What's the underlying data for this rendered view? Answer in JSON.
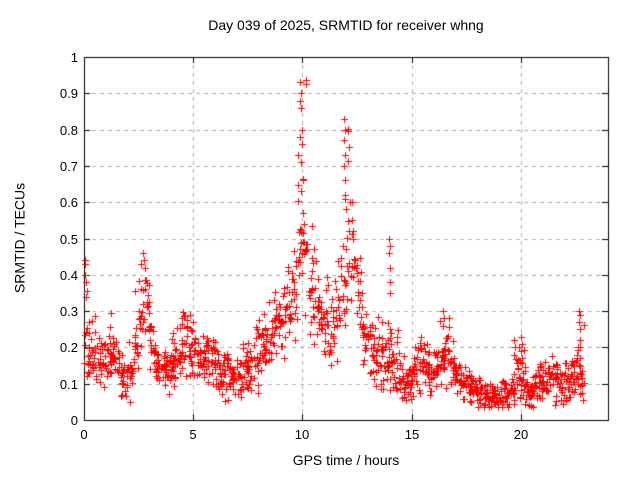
{
  "title": "Day 039 of 2025, SRMTID for receiver whng",
  "colors": {
    "marker": "#ff0000",
    "grid": "#b0b0b0",
    "axis": "#000000",
    "background": "#ffffff"
  },
  "chart_data": {
    "type": "scatter",
    "title": "Day 039 of 2025, SRMTID for receiver whng",
    "xlabel": "GPS time / hours",
    "ylabel": "SRMTID / TECUs",
    "xlim": [
      0,
      24
    ],
    "ylim": [
      0,
      1
    ],
    "xticks": {
      "values": [
        0,
        5,
        10,
        15,
        20
      ],
      "labels": [
        "0",
        "5",
        "10",
        "15",
        "20"
      ]
    },
    "yticks": {
      "values": [
        0,
        0.1,
        0.2,
        0.3,
        0.4,
        0.5,
        0.6,
        0.7,
        0.8,
        0.9,
        1
      ],
      "labels": [
        "0",
        "0.1",
        "0.2",
        "0.3",
        "0.4",
        "0.5",
        "0.6",
        "0.7",
        "0.8",
        "0.9",
        "1"
      ]
    },
    "grid": true,
    "legend": "none",
    "marker": "plus",
    "series_name": "SRMTID",
    "data_end_hour": 22.9,
    "points_per_bin": 15,
    "envelope_bins": {
      "t_start": 0,
      "t_step": 0.25,
      "median": [
        0.2,
        0.17,
        0.15,
        0.15,
        0.19,
        0.17,
        0.13,
        0.1,
        0.12,
        0.19,
        0.27,
        0.3,
        0.2,
        0.13,
        0.14,
        0.12,
        0.14,
        0.17,
        0.21,
        0.19,
        0.18,
        0.18,
        0.16,
        0.15,
        0.13,
        0.12,
        0.12,
        0.11,
        0.12,
        0.13,
        0.14,
        0.15,
        0.17,
        0.19,
        0.21,
        0.24,
        0.26,
        0.28,
        0.34,
        0.42,
        0.46,
        0.36,
        0.3,
        0.28,
        0.26,
        0.23,
        0.28,
        0.37,
        0.46,
        0.42,
        0.31,
        0.23,
        0.19,
        0.16,
        0.15,
        0.15,
        0.15,
        0.12,
        0.1,
        0.1,
        0.13,
        0.15,
        0.15,
        0.13,
        0.13,
        0.16,
        0.18,
        0.14,
        0.11,
        0.1,
        0.09,
        0.08,
        0.07,
        0.06,
        0.06,
        0.06,
        0.06,
        0.07,
        0.08,
        0.11,
        0.1,
        0.09,
        0.09,
        0.1,
        0.11,
        0.12,
        0.1,
        0.09,
        0.1,
        0.1,
        0.11,
        0.1
      ],
      "max": [
        0.44,
        0.3,
        0.25,
        0.28,
        0.32,
        0.3,
        0.22,
        0.17,
        0.24,
        0.36,
        0.43,
        0.46,
        0.38,
        0.22,
        0.26,
        0.21,
        0.26,
        0.3,
        0.33,
        0.31,
        0.28,
        0.26,
        0.24,
        0.22,
        0.2,
        0.18,
        0.2,
        0.17,
        0.21,
        0.22,
        0.25,
        0.27,
        0.3,
        0.33,
        0.36,
        0.4,
        0.42,
        0.45,
        0.56,
        0.8,
        0.94,
        0.7,
        0.5,
        0.45,
        0.42,
        0.4,
        0.5,
        0.72,
        0.83,
        0.64,
        0.55,
        0.4,
        0.35,
        0.3,
        0.28,
        0.3,
        0.3,
        0.25,
        0.19,
        0.18,
        0.22,
        0.25,
        0.24,
        0.22,
        0.22,
        0.28,
        0.3,
        0.22,
        0.18,
        0.16,
        0.15,
        0.13,
        0.12,
        0.11,
        0.1,
        0.1,
        0.11,
        0.12,
        0.14,
        0.22,
        0.22,
        0.14,
        0.14,
        0.16,
        0.18,
        0.19,
        0.16,
        0.14,
        0.16,
        0.17,
        0.2,
        0.31
      ]
    },
    "notable_points": [
      [
        0.05,
        0.44
      ],
      [
        0.06,
        0.43
      ],
      [
        0.05,
        0.4
      ],
      [
        0.08,
        0.38
      ],
      [
        0.1,
        0.34
      ],
      [
        2.7,
        0.46
      ],
      [
        2.75,
        0.44
      ],
      [
        2.62,
        0.43
      ],
      [
        2.8,
        0.42
      ],
      [
        9.9,
        0.93
      ],
      [
        9.93,
        0.9
      ],
      [
        9.91,
        0.88
      ],
      [
        9.95,
        0.86
      ],
      [
        9.97,
        0.8
      ],
      [
        9.9,
        0.78
      ],
      [
        10.0,
        0.76
      ],
      [
        9.94,
        0.71
      ],
      [
        10.02,
        0.66
      ],
      [
        9.96,
        0.63
      ],
      [
        10.05,
        0.57
      ],
      [
        11.92,
        0.83
      ],
      [
        11.94,
        0.8
      ],
      [
        11.9,
        0.77
      ],
      [
        11.96,
        0.73
      ],
      [
        11.93,
        0.7
      ],
      [
        11.97,
        0.66
      ],
      [
        11.95,
        0.62
      ],
      [
        12.0,
        0.58
      ],
      [
        12.28,
        0.55
      ],
      [
        12.3,
        0.52
      ],
      [
        13.97,
        0.5
      ],
      [
        14.0,
        0.48
      ],
      [
        13.98,
        0.46
      ],
      [
        14.02,
        0.42
      ],
      [
        14.0,
        0.38
      ],
      [
        14.03,
        0.35
      ],
      [
        16.45,
        0.3
      ],
      [
        16.48,
        0.28
      ],
      [
        16.43,
        0.26
      ],
      [
        19.7,
        0.22
      ],
      [
        19.72,
        0.2
      ],
      [
        19.68,
        0.18
      ],
      [
        20.02,
        0.23
      ],
      [
        20.05,
        0.21
      ],
      [
        20.0,
        0.19
      ],
      [
        20.08,
        0.17
      ],
      [
        22.68,
        0.3
      ],
      [
        22.7,
        0.29
      ],
      [
        22.69,
        0.27
      ],
      [
        22.7,
        0.25
      ],
      [
        22.72,
        0.22
      ],
      [
        22.7,
        0.2
      ],
      [
        22.71,
        0.17
      ],
      [
        22.73,
        0.15
      ]
    ]
  }
}
